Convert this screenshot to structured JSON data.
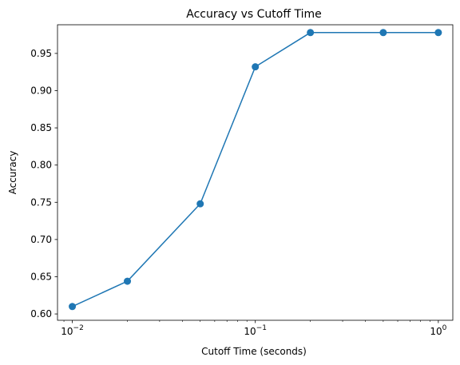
{
  "chart_data": {
    "type": "line",
    "title": "Accuracy vs Cutoff Time",
    "xlabel": "Cutoff Time (seconds)",
    "ylabel": "Accuracy",
    "xscale": "log",
    "xlim": [
      0.0083,
      1.2
    ],
    "ylim": [
      0.5915,
      0.9885
    ],
    "x_ticks": [
      {
        "value": 0.01,
        "base": "10",
        "exp": "−2"
      },
      {
        "value": 0.1,
        "base": "10",
        "exp": "−1"
      },
      {
        "value": 1,
        "base": "10",
        "exp": "0"
      }
    ],
    "y_ticks": [
      {
        "value": 0.6,
        "label": "0.60"
      },
      {
        "value": 0.65,
        "label": "0.65"
      },
      {
        "value": 0.7,
        "label": "0.70"
      },
      {
        "value": 0.75,
        "label": "0.75"
      },
      {
        "value": 0.8,
        "label": "0.80"
      },
      {
        "value": 0.85,
        "label": "0.85"
      },
      {
        "value": 0.9,
        "label": "0.90"
      },
      {
        "value": 0.95,
        "label": "0.95"
      }
    ],
    "grid": false,
    "legend": "none",
    "color": "#1f77b4",
    "marker": "circle",
    "x": [
      0.01,
      0.02,
      0.05,
      0.1,
      0.2,
      0.5,
      1.0
    ],
    "y": [
      0.61,
      0.644,
      0.748,
      0.932,
      0.978,
      0.978,
      0.978
    ]
  }
}
